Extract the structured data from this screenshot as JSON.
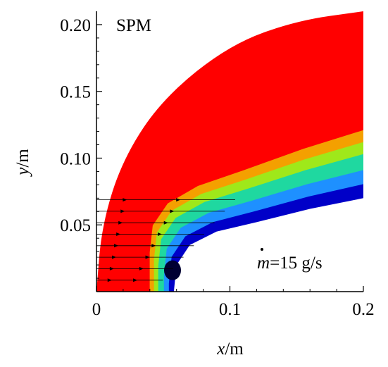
{
  "chart_data": {
    "type": "contour",
    "panel_label": "SPM",
    "annotation": {
      "prefix": "m",
      "suffix": "=15 g/s"
    },
    "xlabel": {
      "var": "x",
      "unit": "/m"
    },
    "ylabel": {
      "var": "y",
      "unit": "/m"
    },
    "xlim": [
      0,
      0.2
    ],
    "ylim": [
      0,
      0.21
    ],
    "xticks": [
      0,
      0.1,
      0.2
    ],
    "xtick_labels": [
      "0",
      "0.1",
      "0.2"
    ],
    "yticks": [
      0.05,
      0.1,
      0.15,
      0.2
    ],
    "ytick_labels": [
      "0.05",
      "0.10",
      "0.15",
      "0.20"
    ],
    "grid": false,
    "bow_shock": [
      [
        0.0,
        0.0
      ],
      [
        0.004,
        0.05
      ],
      [
        0.02,
        0.1
      ],
      [
        0.05,
        0.145
      ],
      [
        0.1,
        0.185
      ],
      [
        0.15,
        0.203
      ],
      [
        0.2,
        0.21
      ]
    ],
    "body_contour": [
      [
        0.058,
        0.0
      ],
      [
        0.06,
        0.02
      ],
      [
        0.07,
        0.035
      ],
      [
        0.09,
        0.045
      ],
      [
        0.12,
        0.052
      ],
      [
        0.16,
        0.062
      ],
      [
        0.2,
        0.07
      ]
    ],
    "streamline_y": [
      0.0086,
      0.0172,
      0.0258,
      0.0344,
      0.043,
      0.0516,
      0.0602,
      0.0688
    ],
    "colors": {
      "freestream": "#ff0000",
      "shock_layer_high": "#f4a000",
      "shock_layer_mid": "#9fe81a",
      "shock_layer_low": "#1fd8a0",
      "cool_layer": "#1e90ff",
      "inner_layer": "#0000c8",
      "core": "#000033"
    }
  }
}
